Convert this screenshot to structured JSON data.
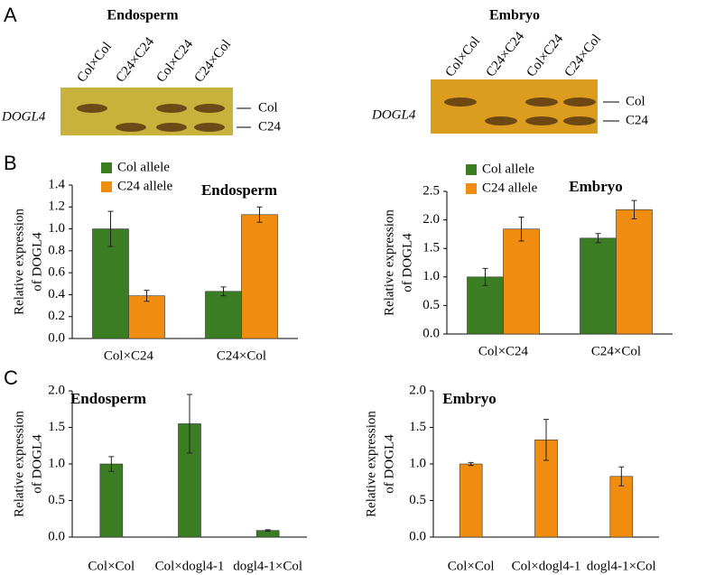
{
  "panel_labels": [
    "A",
    "B",
    "C"
  ],
  "gels": [
    {
      "title": "Endosperm",
      "gene": "DOGL4",
      "lanes": [
        "Col×Col",
        "C24×C24",
        "Col×C24",
        "C24×Col"
      ],
      "bands": [
        "Col",
        "C24"
      ]
    },
    {
      "title": "Embryo",
      "gene": "DOGL4",
      "lanes": [
        "Col×Col",
        "C24×C24",
        "Col×C24",
        "C24×Col"
      ],
      "bands": [
        "Col",
        "C24"
      ]
    }
  ],
  "chart_data": [
    {
      "type": "bar",
      "title": "Endosperm",
      "y_label": [
        "Relative expression",
        "of DOGL4"
      ],
      "categories": [
        "Col×C24",
        "C24×Col"
      ],
      "series": [
        {
          "name": "Col allele",
          "color": "#3b7d23",
          "values": [
            1.0,
            0.43
          ],
          "errors": [
            0.16,
            0.04
          ]
        },
        {
          "name": "C24 allele",
          "color": "#f08c10",
          "values": [
            0.39,
            1.13
          ],
          "errors": [
            0.05,
            0.07
          ]
        }
      ],
      "ylim": [
        0,
        1.4
      ],
      "yticks": [
        {
          "value": 0,
          "label": "0.0"
        },
        0.2,
        0.4,
        0.6,
        0.8,
        {
          "value": 1,
          "label": "1.0"
        },
        1.2,
        1.4
      ]
    },
    {
      "type": "bar",
      "title": "Embryo",
      "y_label": [
        "Relative expression",
        "of DOGL4"
      ],
      "categories": [
        "Col×C24",
        "C24×Col"
      ],
      "series": [
        {
          "name": "Col allele",
          "color": "#3b7d23",
          "values": [
            1.0,
            1.68
          ],
          "errors": [
            0.15,
            0.08
          ]
        },
        {
          "name": "C24 allele",
          "color": "#f08c10",
          "values": [
            1.84,
            2.18
          ],
          "errors": [
            0.21,
            0.16
          ]
        }
      ],
      "ylim": [
        0,
        2.5
      ],
      "yticks": [
        {
          "value": 0,
          "label": "0.0"
        },
        0.5,
        {
          "value": 1,
          "label": "1.0"
        },
        1.5,
        {
          "value": 2,
          "label": "2.0"
        },
        2.5
      ]
    },
    {
      "type": "bar",
      "title": "Endosperm",
      "y_label": [
        "Relative expression",
        "of DOGL4"
      ],
      "categories": [
        "Col×Col",
        "Col×dogl4-1",
        "dogl4-1×Col"
      ],
      "series": [
        {
          "color": "#3b7d23",
          "values": [
            1.0,
            1.55,
            0.09
          ],
          "errors": [
            0.1,
            0.4,
            0.01
          ]
        }
      ],
      "ylim": [
        0,
        2
      ],
      "yticks": [
        {
          "value": 0,
          "label": "0.0"
        },
        0.5,
        {
          "value": 1,
          "label": "1.0"
        },
        1.5,
        {
          "value": 2,
          "label": "2.0"
        }
      ]
    },
    {
      "type": "bar",
      "title": "Embryo",
      "y_label": [
        "Relative expression",
        "of DOGL4"
      ],
      "categories": [
        "Col×Col",
        "Col×dogl4-1",
        "dogl4-1×Col"
      ],
      "series": [
        {
          "color": "#f08c10",
          "values": [
            1.0,
            1.33,
            0.83
          ],
          "errors": [
            0.02,
            0.28,
            0.13
          ]
        }
      ],
      "ylim": [
        0,
        2
      ],
      "yticks": [
        {
          "value": 0,
          "label": "0.0"
        },
        0.5,
        {
          "value": 1,
          "label": "1.0"
        },
        1.5,
        {
          "value": 2,
          "label": "2.0"
        }
      ]
    }
  ]
}
